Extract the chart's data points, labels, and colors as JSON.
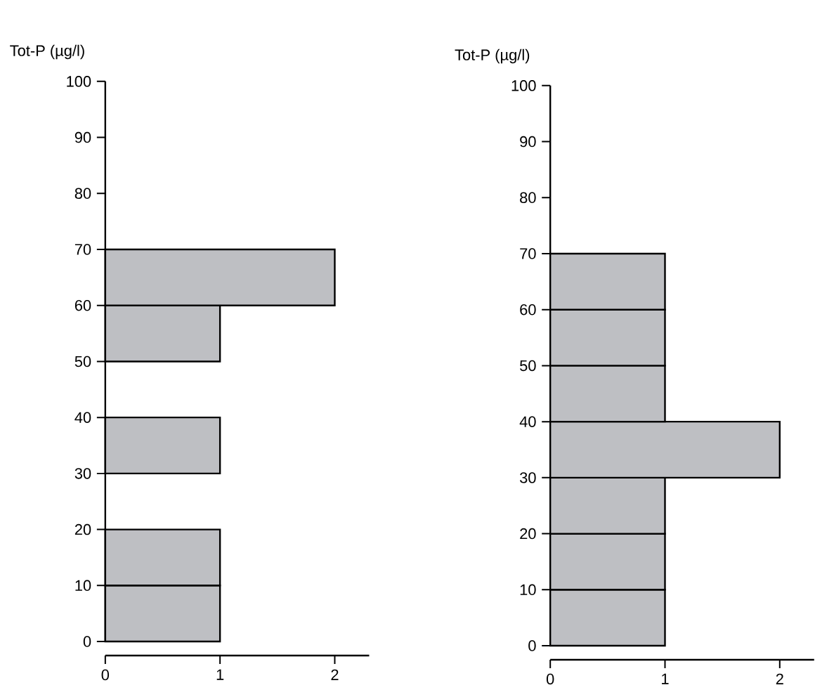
{
  "chart_data": [
    {
      "type": "histogram",
      "orientation": "horizontal",
      "ylabel": "Tot-P (µg/l)",
      "bins": [
        0,
        10,
        20,
        30,
        40,
        50,
        60,
        70
      ],
      "values": [
        1,
        1,
        0,
        1,
        0,
        1,
        2
      ],
      "color": "#bebfc3",
      "xlim": [
        0,
        2.3
      ],
      "xticks": [
        0,
        1,
        2
      ],
      "ylim": [
        0,
        100
      ],
      "yticks": [
        0,
        10,
        20,
        30,
        40,
        50,
        60,
        70,
        80,
        90,
        100
      ]
    },
    {
      "type": "histogram",
      "orientation": "horizontal",
      "ylabel": "Tot-P (µg/l)",
      "bins": [
        0,
        10,
        20,
        30,
        40,
        50,
        60,
        70
      ],
      "values": [
        1,
        1,
        1,
        2,
        1,
        1,
        1
      ],
      "color": "#bebfc3",
      "xlim": [
        0,
        2.3
      ],
      "xticks": [
        0,
        1,
        2
      ],
      "ylim": [
        0,
        100
      ],
      "yticks": [
        0,
        10,
        20,
        30,
        40,
        50,
        60,
        70,
        80,
        90,
        100
      ]
    }
  ]
}
